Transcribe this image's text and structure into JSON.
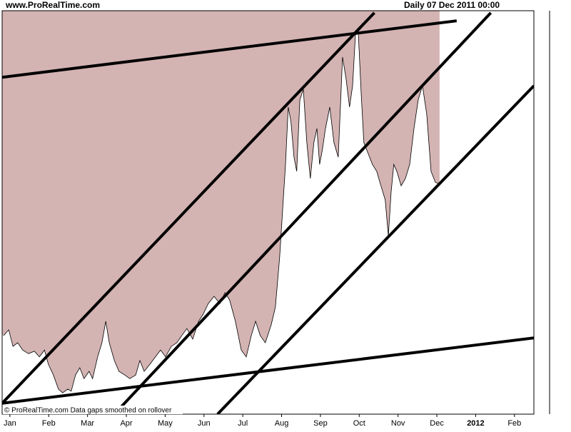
{
  "header": {
    "site": "www.ProRealTime.com",
    "period": "Daily  07 Dec 2011 00:00"
  },
  "footer": "© ProRealTime.com  Data gaps smoothed on rollover",
  "chart_data": {
    "type": "area",
    "fill_above": true,
    "color": "#d4b3b3",
    "line_color": "#000000",
    "xlim": [
      -0.2,
      13.5
    ],
    "ylim": [
      0,
      100
    ],
    "xticks": [
      {
        "value": 0,
        "label": "Jan"
      },
      {
        "value": 1,
        "label": "Feb"
      },
      {
        "value": 2,
        "label": "Mar"
      },
      {
        "value": 3,
        "label": "Apr"
      },
      {
        "value": 4,
        "label": "May"
      },
      {
        "value": 5,
        "label": "Jun"
      },
      {
        "value": 6,
        "label": "Jul"
      },
      {
        "value": 7,
        "label": "Aug"
      },
      {
        "value": 8,
        "label": "Sep"
      },
      {
        "value": 9,
        "label": "Oct"
      },
      {
        "value": 10,
        "label": "Nov"
      },
      {
        "value": 11,
        "label": "Dec"
      },
      {
        "value": 12,
        "label": "2012"
      },
      {
        "value": 13,
        "label": "Feb"
      }
    ],
    "x": [
      -0.16,
      -0.03,
      0.08,
      0.2,
      0.33,
      0.48,
      0.63,
      0.76,
      0.89,
      0.99,
      1.12,
      1.25,
      1.36,
      1.49,
      1.58,
      1.69,
      1.8,
      1.91,
      2.04,
      2.13,
      2.26,
      2.37,
      2.47,
      2.56,
      2.69,
      2.81,
      2.96,
      3.09,
      3.24,
      3.35,
      3.46,
      3.61,
      3.75,
      3.88,
      4.01,
      4.16,
      4.3,
      4.43,
      4.56,
      4.71,
      4.86,
      4.98,
      5.11,
      5.26,
      5.41,
      5.54,
      5.66,
      5.81,
      5.96,
      6.09,
      6.22,
      6.33,
      6.45,
      6.58,
      6.73,
      6.84,
      6.95,
      7.02,
      7.1,
      7.17,
      7.24,
      7.32,
      7.39,
      7.47,
      7.56,
      7.65,
      7.74,
      7.83,
      7.91,
      7.98,
      8.05,
      8.13,
      8.24,
      8.35,
      8.46,
      8.57,
      8.66,
      8.75,
      8.83,
      8.9,
      8.97,
      9.05,
      9.12,
      9.23,
      9.34,
      9.45,
      9.56,
      9.67,
      9.75,
      9.82,
      9.89,
      9.97,
      10.08,
      10.19,
      10.3,
      10.41,
      10.52,
      10.63,
      10.74,
      10.85,
      10.96,
      11.07
    ],
    "values": [
      19.5,
      20.9,
      16.8,
      17.7,
      15.9,
      15.0,
      15.6,
      14.2,
      15.9,
      12.4,
      9.7,
      6.2,
      5.3,
      6.2,
      5.7,
      9.7,
      11.5,
      8.8,
      10.6,
      8.8,
      14.2,
      17.7,
      23.0,
      17.7,
      13.3,
      10.6,
      9.7,
      8.8,
      9.7,
      13.3,
      10.6,
      12.4,
      14.2,
      15.9,
      14.2,
      16.8,
      17.7,
      19.5,
      21.2,
      18.6,
      23.0,
      24.8,
      27.4,
      29.2,
      27.4,
      30.1,
      28.3,
      23.0,
      15.9,
      14.2,
      19.5,
      23.0,
      19.5,
      17.7,
      22.1,
      26.5,
      38.9,
      49.6,
      61.9,
      76.1,
      72.6,
      63.7,
      60.2,
      77.9,
      80.5,
      67.3,
      58.4,
      67.3,
      70.8,
      61.9,
      65.5,
      70.8,
      76.1,
      67.3,
      63.7,
      88.5,
      83.2,
      76.1,
      81.4,
      93.8,
      95.6,
      79.6,
      67.3,
      64.6,
      61.9,
      60.2,
      56.6,
      53.1,
      44.2,
      54.9,
      61.9,
      60.2,
      56.6,
      58.4,
      61.9,
      70.8,
      77.9,
      81.4,
      74.3,
      60.2,
      57.5,
      57.0
    ],
    "trend_lines": [
      {
        "x": [
          -0.2,
          11.51
        ],
        "y": [
          83.5,
          97.5
        ]
      },
      {
        "x": [
          -0.2,
          9.39
        ],
        "y": [
          2.7,
          99.5
        ]
      },
      {
        "x": [
          2.69,
          12.39
        ],
        "y": [
          0,
          99.5
        ]
      },
      {
        "x": [
          5.35,
          13.5
        ],
        "y": [
          0,
          81.4
        ]
      },
      {
        "x": [
          -0.2,
          13.5
        ],
        "y": [
          2.7,
          18.9
        ]
      }
    ]
  }
}
